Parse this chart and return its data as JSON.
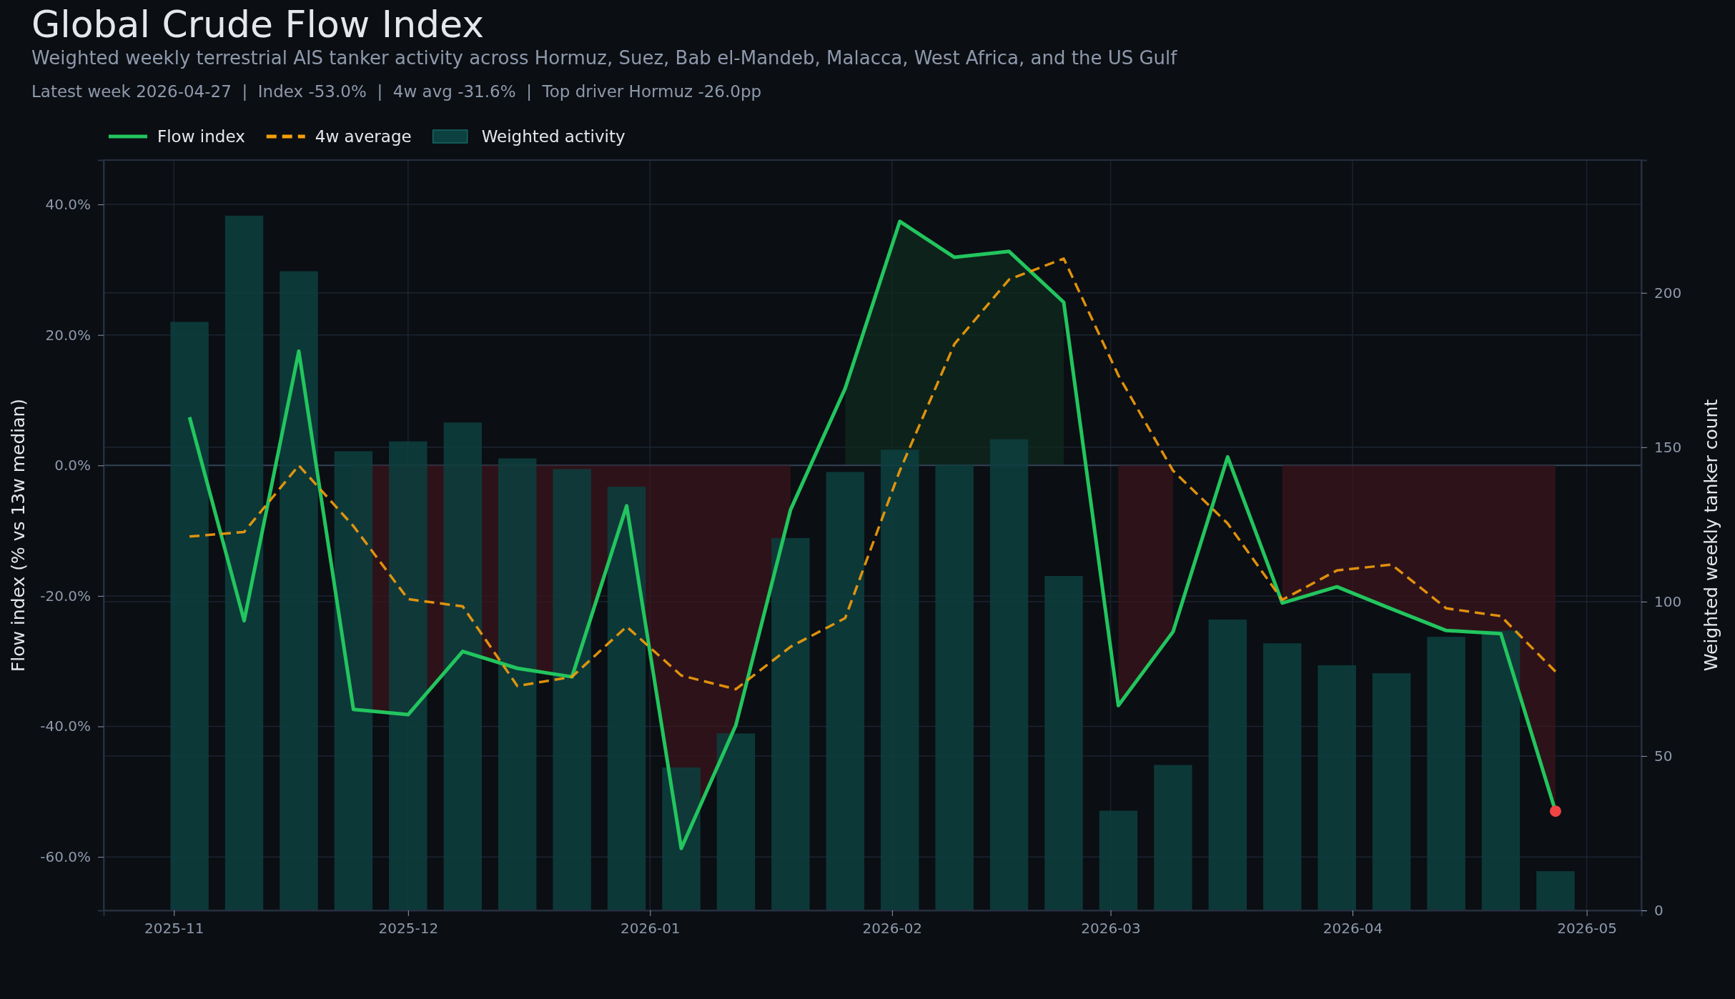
{
  "chart_data": {
    "type": "line",
    "title": "Global Crude Flow Index",
    "subtitle": "Weighted weekly terrestrial AIS tanker activity across Hormuz, Suez, Bab el-Mandeb, Malacca, West Africa, and the US Gulf",
    "annotations": [
      "Latest week 2026-04-27  |  Index -53.0%  |  4w avg -31.6%  |  Top driver Hormuz -26.0pp"
    ],
    "ylabel": "Flow index (% vs 13w median)",
    "y2label": "Weighted weekly tanker count",
    "x": [
      "2025-11-03",
      "2025-11-10",
      "2025-11-17",
      "2025-11-24",
      "2025-12-01",
      "2025-12-08",
      "2025-12-15",
      "2025-12-22",
      "2025-12-29",
      "2026-01-05",
      "2026-01-12",
      "2026-01-19",
      "2026-01-26",
      "2026-02-02",
      "2026-02-09",
      "2026-02-16",
      "2026-02-23",
      "2026-03-02",
      "2026-03-09",
      "2026-03-16",
      "2026-03-23",
      "2026-03-30",
      "2026-04-06",
      "2026-04-13",
      "2026-04-20",
      "2026-04-27"
    ],
    "series": [
      {
        "name": "Flow index",
        "color": "#22c55e",
        "line_style": "solid",
        "values": [
          7.4,
          -23.8,
          17.5,
          -37.4,
          -38.2,
          -28.5,
          -31.1,
          -32.4,
          -6.2,
          -58.7,
          -39.8,
          -6.8,
          11.8,
          37.4,
          31.9,
          32.8,
          25.0,
          -36.8,
          -25.5,
          1.3,
          -21.1,
          -18.6,
          -22.0,
          -25.3,
          -25.8,
          -53.0
        ]
      },
      {
        "name": "4w average",
        "color": "#f59e0b",
        "line_style": "dashed",
        "values": [
          -10.9,
          -10.2,
          0.0,
          -9.3,
          -20.5,
          -21.6,
          -33.8,
          -32.4,
          -24.7,
          -32.2,
          -34.3,
          -27.8,
          -23.4,
          -0.8,
          18.6,
          28.5,
          31.7,
          13.8,
          -0.8,
          -8.9,
          -20.6,
          -16.1,
          -15.2,
          -21.9,
          -23.1,
          -31.6
        ]
      },
      {
        "name": "Weighted activity",
        "type": "bar",
        "axis": "y2",
        "color": "#0d4040",
        "values": [
          190.6,
          225.0,
          207.0,
          148.7,
          151.9,
          158.0,
          146.4,
          142.9,
          137.2,
          46.3,
          57.3,
          120.6,
          142.0,
          149.2,
          144.3,
          152.6,
          108.3,
          32.3,
          47.1,
          94.2,
          86.5,
          79.4,
          76.8,
          88.6,
          90.6,
          12.7
        ]
      },
      {
        "type": "area",
        "color": "#0f2a1e",
        "values": [
          null,
          null,
          null,
          null,
          null,
          null,
          null,
          null,
          null,
          null,
          null,
          null,
          11.8,
          37.4,
          31.9,
          32.8,
          25.0,
          null,
          null,
          null,
          null,
          null,
          null,
          null,
          null,
          null
        ]
      },
      {
        "type": "area",
        "color": "#3a161c",
        "values": [
          null,
          null,
          null,
          -37.4,
          -38.2,
          -28.5,
          -31.1,
          -32.4,
          -6.2,
          -58.7,
          -39.8,
          -6.8,
          null,
          null,
          null,
          null,
          null,
          -36.8,
          -25.5,
          null,
          -21.1,
          -18.6,
          -22.0,
          -25.3,
          -25.8,
          -53.0
        ]
      },
      {
        "type": "scatter",
        "color": "#ef4444",
        "marker": "circle",
        "x": [
          "2026-04-27"
        ],
        "values": [
          -53.0
        ]
      }
    ],
    "xlim": [
      "2025-10-23",
      "2026-05-08"
    ],
    "xticks": [
      {
        "value": "2025-11-01",
        "label": "2025-11"
      },
      {
        "value": "2025-12-01",
        "label": "2025-12"
      },
      {
        "value": "2026-01-01",
        "label": "2026-01"
      },
      {
        "value": "2026-02-01",
        "label": "2026-02"
      },
      {
        "value": "2026-03-01",
        "label": "2026-03"
      },
      {
        "value": "2026-04-01",
        "label": "2026-04"
      },
      {
        "value": "2026-05-01",
        "label": "2026-05"
      }
    ],
    "ylim": [
      -68.2,
      46.8
    ],
    "yticks": [
      {
        "value": -60,
        "label": "-60.0%"
      },
      {
        "value": -40,
        "label": "-40.0%"
      },
      {
        "value": -20,
        "label": "-20.0%"
      },
      {
        "value": 0,
        "label": "0.0%"
      },
      {
        "value": 20,
        "label": "20.0%"
      },
      {
        "value": 40,
        "label": "40.0%"
      }
    ],
    "y2lim": [
      0,
      243
    ],
    "y2ticks": [
      0,
      50,
      100,
      150,
      200
    ],
    "ref_lines": [
      {
        "axis": "y",
        "value": 0,
        "color": "#334155"
      }
    ],
    "grid": true,
    "legend": "top left"
  }
}
